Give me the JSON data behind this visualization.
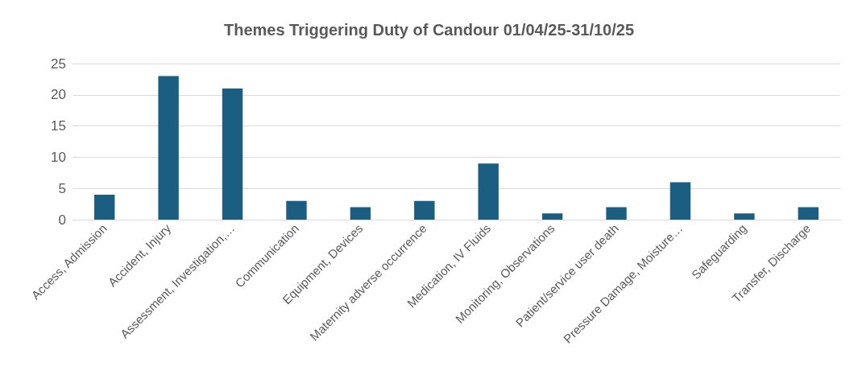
{
  "chart_data": {
    "type": "bar",
    "title": "Themes Triggering Duty of Candour 01/04/25-31/10/25",
    "categories": [
      "Access, Admission",
      "Accident, Injury",
      "Assessment, Investigation,…",
      "Communication",
      "Equipment, Devices",
      "Maternity adverse occurrence",
      "Medication, IV Fluids",
      "Monitoring, Observations",
      "Patient/service user death",
      "Pressure Damage, Moisture…",
      "Safeguarding",
      "Transfer, Discharge"
    ],
    "values": [
      4,
      23,
      21,
      3,
      2,
      3,
      9,
      1,
      2,
      6,
      1,
      2
    ],
    "color": "#1b5e82",
    "ylim": [
      0,
      25
    ],
    "yticks": [
      0,
      5,
      10,
      15,
      20,
      25
    ],
    "grid": "y"
  }
}
